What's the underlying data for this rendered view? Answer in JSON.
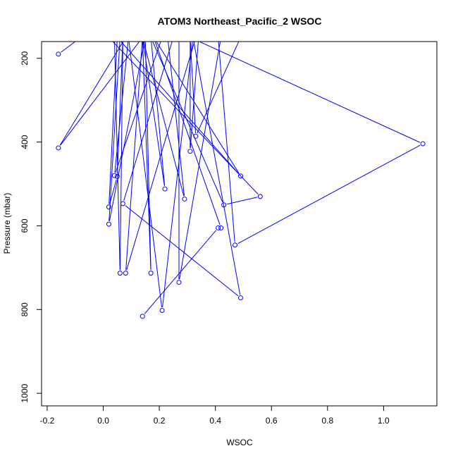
{
  "chart_data": {
    "type": "line",
    "title": "ATOM3 Northeast_Pacific_2 WSOC",
    "xlabel": "WSOC",
    "ylabel": "Pressure (mbar)",
    "xlim": [
      -0.22,
      1.19
    ],
    "ylim": [
      1030,
      160
    ],
    "xticks": [
      -0.2,
      0.0,
      0.2,
      0.4,
      0.6,
      0.8,
      1.0
    ],
    "xtick_labels": [
      "-0.2",
      "0.0",
      "0.2",
      "0.4",
      "0.6",
      "0.8",
      "1.0"
    ],
    "yticks": [
      200,
      400,
      600,
      800,
      1000
    ],
    "ytick_labels": [
      "200",
      "400",
      "600",
      "800",
      "1000"
    ],
    "grid": false,
    "series_color": "#0000ff",
    "series": [
      {
        "x": [
          -0.16,
          -0.08,
          0.14,
          -0.16,
          0.08,
          0.16,
          0.09,
          0.04,
          0.21,
          0.26,
          0.15,
          0.07,
          0.05,
          0.02,
          0.05,
          0.49,
          0.18,
          0.14,
          0.08,
          0.33,
          0.34,
          0.31,
          0.31,
          0.33,
          0.49,
          0.15,
          0.02,
          0.06,
          0.12,
          0.14,
          0.29,
          0.23,
          0.14,
          0.22,
          0.17,
          0.43,
          0.56,
          0.02,
          0.25,
          0.07,
          0.49,
          0.32,
          0.41,
          0.47,
          1.14,
          0.31,
          0.42,
          0.27,
          0.27,
          0.14,
          0.17,
          0.15,
          0.07,
          0.06,
          0.04,
          0.09,
          0.21,
          0.32,
          0.13,
          0.18,
          0.42,
          0.41,
          0.14
        ],
        "y": [
          190,
          150,
          150,
          414,
          150,
          150,
          150,
          480,
          150,
          150,
          150,
          150,
          482,
          555,
          150,
          481,
          150,
          150,
          713,
          150,
          150,
          422,
          150,
          386,
          150,
          150,
          596,
          150,
          150,
          150,
          536,
          150,
          150,
          512,
          150,
          550,
          530,
          150,
          150,
          547,
          772,
          150,
          150,
          646,
          404,
          150,
          150,
          735,
          150,
          150,
          713,
          150,
          150,
          713,
          150,
          150,
          802,
          150,
          150,
          150,
          605,
          605,
          816
        ]
      }
    ]
  }
}
